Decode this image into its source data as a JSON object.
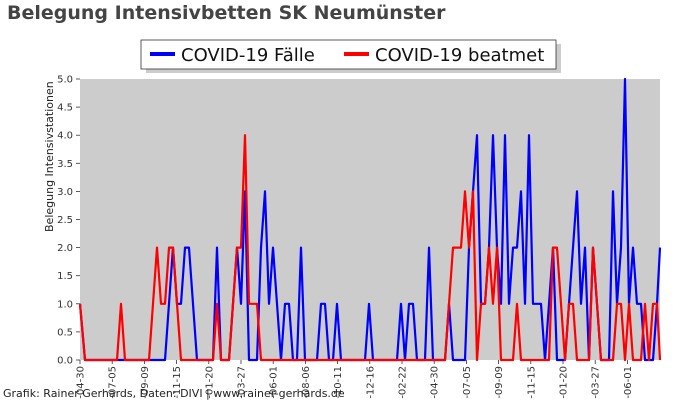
{
  "chart_data": {
    "type": "line",
    "title": "Belegung Intensivbetten SK Neumünster",
    "ylabel": "Belegung Intensivstationen",
    "xlabel": "",
    "ylim": [
      0,
      5
    ],
    "yticks": [
      "0.0",
      "0.5",
      "1.0",
      "1.5",
      "2.0",
      "2.5",
      "3.0",
      "3.5",
      "4.0",
      "4.5",
      "5.0"
    ],
    "xticks": [
      "-04-30",
      "-07-05",
      "-09-09",
      "-11-15",
      "-01-20",
      "-03-27",
      "-06-01",
      "-08-06",
      "-10-11",
      "-12-16",
      "-02-22",
      "-04-30",
      "-07-05",
      "-09-09",
      "-11-15",
      "-01-20",
      "-03-27",
      "-06-01"
    ],
    "grid": false,
    "legend_position": "top-center",
    "colors": {
      "plot_bg": "#cccccc",
      "faelle": "#0000ff",
      "beatmet": "#ff0000"
    },
    "series": [
      {
        "name": "COVID-19 Fälle",
        "x": [
          0,
          5,
          9,
          13,
          17,
          21,
          25,
          29,
          33,
          37,
          41,
          45,
          49,
          53,
          57,
          61,
          65,
          69,
          73,
          77,
          81,
          85,
          89,
          93,
          97,
          101,
          105,
          109,
          113,
          117,
          121,
          125,
          129,
          133,
          137,
          141,
          145,
          149,
          153,
          157,
          161,
          165,
          169,
          173,
          177,
          181,
          185,
          189,
          193,
          197,
          201,
          205,
          209,
          213,
          217,
          221,
          225,
          229,
          233,
          237,
          241,
          245,
          249,
          253,
          257,
          261,
          265,
          269,
          273,
          277,
          281,
          285,
          289,
          293,
          297,
          301,
          305,
          309,
          313,
          317,
          321,
          325,
          329,
          333,
          337,
          341,
          345,
          349,
          353,
          357,
          361,
          365,
          369,
          373,
          377,
          381,
          385,
          389,
          393,
          397,
          401,
          405,
          409,
          413,
          417,
          421,
          425,
          429,
          433,
          437,
          441,
          445,
          449,
          453,
          457,
          461,
          465,
          469,
          473,
          477,
          481,
          485,
          489,
          493,
          497,
          501,
          505,
          509,
          513,
          517,
          521,
          525,
          529,
          533,
          537,
          541,
          545,
          549,
          553,
          557,
          561,
          565,
          569,
          573,
          577,
          580
        ],
        "values": [
          1,
          0,
          0,
          0,
          0,
          0,
          0,
          0,
          0,
          0,
          0,
          0,
          0,
          0,
          0,
          0,
          0,
          0,
          0,
          0,
          0,
          0,
          1,
          2,
          1,
          1,
          2,
          2,
          1,
          0,
          0,
          0,
          0,
          0,
          2,
          0,
          0,
          0,
          1,
          2,
          1,
          3,
          0,
          0,
          0,
          2,
          3,
          1,
          2,
          1,
          0,
          1,
          1,
          0,
          0,
          2,
          0,
          0,
          0,
          0,
          1,
          1,
          0,
          0,
          1,
          0,
          0,
          0,
          0,
          0,
          0,
          0,
          1,
          0,
          0,
          0,
          0,
          0,
          0,
          0,
          1,
          0,
          1,
          1,
          0,
          0,
          0,
          2,
          0,
          0,
          0,
          0,
          1,
          0,
          0,
          0,
          0,
          2,
          3,
          4,
          1,
          1,
          2,
          4,
          2,
          1,
          4,
          1,
          2,
          2,
          3,
          1,
          4,
          1,
          1,
          1,
          0,
          1,
          2,
          0,
          0,
          0,
          1,
          2,
          3,
          1,
          2,
          0,
          2,
          1,
          0,
          0,
          0,
          3,
          1,
          2,
          5,
          1,
          2,
          1,
          1,
          0,
          0,
          0,
          1,
          2
        ],
        "series_note": ""
      },
      {
        "name": "COVID-19 beatmet",
        "x": [
          0,
          5,
          9,
          13,
          17,
          21,
          25,
          29,
          33,
          37,
          41,
          45,
          49,
          53,
          57,
          61,
          65,
          69,
          73,
          77,
          81,
          85,
          89,
          93,
          97,
          101,
          105,
          109,
          113,
          117,
          121,
          125,
          129,
          133,
          137,
          141,
          145,
          149,
          153,
          157,
          161,
          165,
          169,
          173,
          177,
          181,
          185,
          189,
          193,
          197,
          201,
          205,
          209,
          213,
          217,
          221,
          225,
          229,
          233,
          237,
          241,
          245,
          249,
          253,
          257,
          261,
          265,
          269,
          273,
          277,
          281,
          285,
          289,
          293,
          297,
          301,
          305,
          309,
          313,
          317,
          321,
          325,
          329,
          333,
          337,
          341,
          345,
          349,
          353,
          357,
          361,
          365,
          369,
          373,
          377,
          381,
          385,
          389,
          393,
          397,
          401,
          405,
          409,
          413,
          417,
          421,
          425,
          429,
          433,
          437,
          441,
          445,
          449,
          453,
          457,
          461,
          465,
          469,
          473,
          477,
          481,
          485,
          489,
          493,
          497,
          501,
          505,
          509,
          513,
          517,
          521,
          525,
          529,
          533,
          537,
          541,
          545,
          549,
          553,
          557,
          561,
          565,
          569,
          573,
          577,
          580
        ],
        "values": [
          1,
          0,
          0,
          0,
          0,
          0,
          0,
          0,
          0,
          0,
          1,
          0,
          0,
          0,
          0,
          0,
          0,
          0,
          1,
          2,
          1,
          1,
          2,
          2,
          1,
          0,
          0,
          0,
          0,
          0,
          0,
          0,
          0,
          0,
          1,
          0,
          0,
          0,
          1,
          2,
          2,
          4,
          1,
          1,
          1,
          0,
          0,
          0,
          0,
          0,
          0,
          0,
          0,
          0,
          0,
          0,
          0,
          0,
          0,
          0,
          0,
          0,
          0,
          0,
          0,
          0,
          0,
          0,
          0,
          0,
          0,
          0,
          0,
          0,
          0,
          0,
          0,
          0,
          0,
          0,
          0,
          0,
          0,
          0,
          0,
          0,
          0,
          0,
          0,
          0,
          0,
          0,
          1,
          2,
          2,
          2,
          3,
          2,
          3,
          0,
          1,
          1,
          2,
          1,
          2,
          0,
          0,
          0,
          0,
          1,
          0,
          0,
          0,
          0,
          0,
          0,
          0,
          0,
          2,
          2,
          1,
          0,
          1,
          1,
          0,
          0,
          0,
          0,
          2,
          1,
          0,
          0,
          0,
          0,
          1,
          1,
          0,
          1,
          0,
          0,
          0,
          1,
          0,
          1,
          1,
          0
        ]
      }
    ],
    "credit": "Grafik: Rainer Gerhards, Daten: DIVI | www.rainer-gerhards.de"
  }
}
